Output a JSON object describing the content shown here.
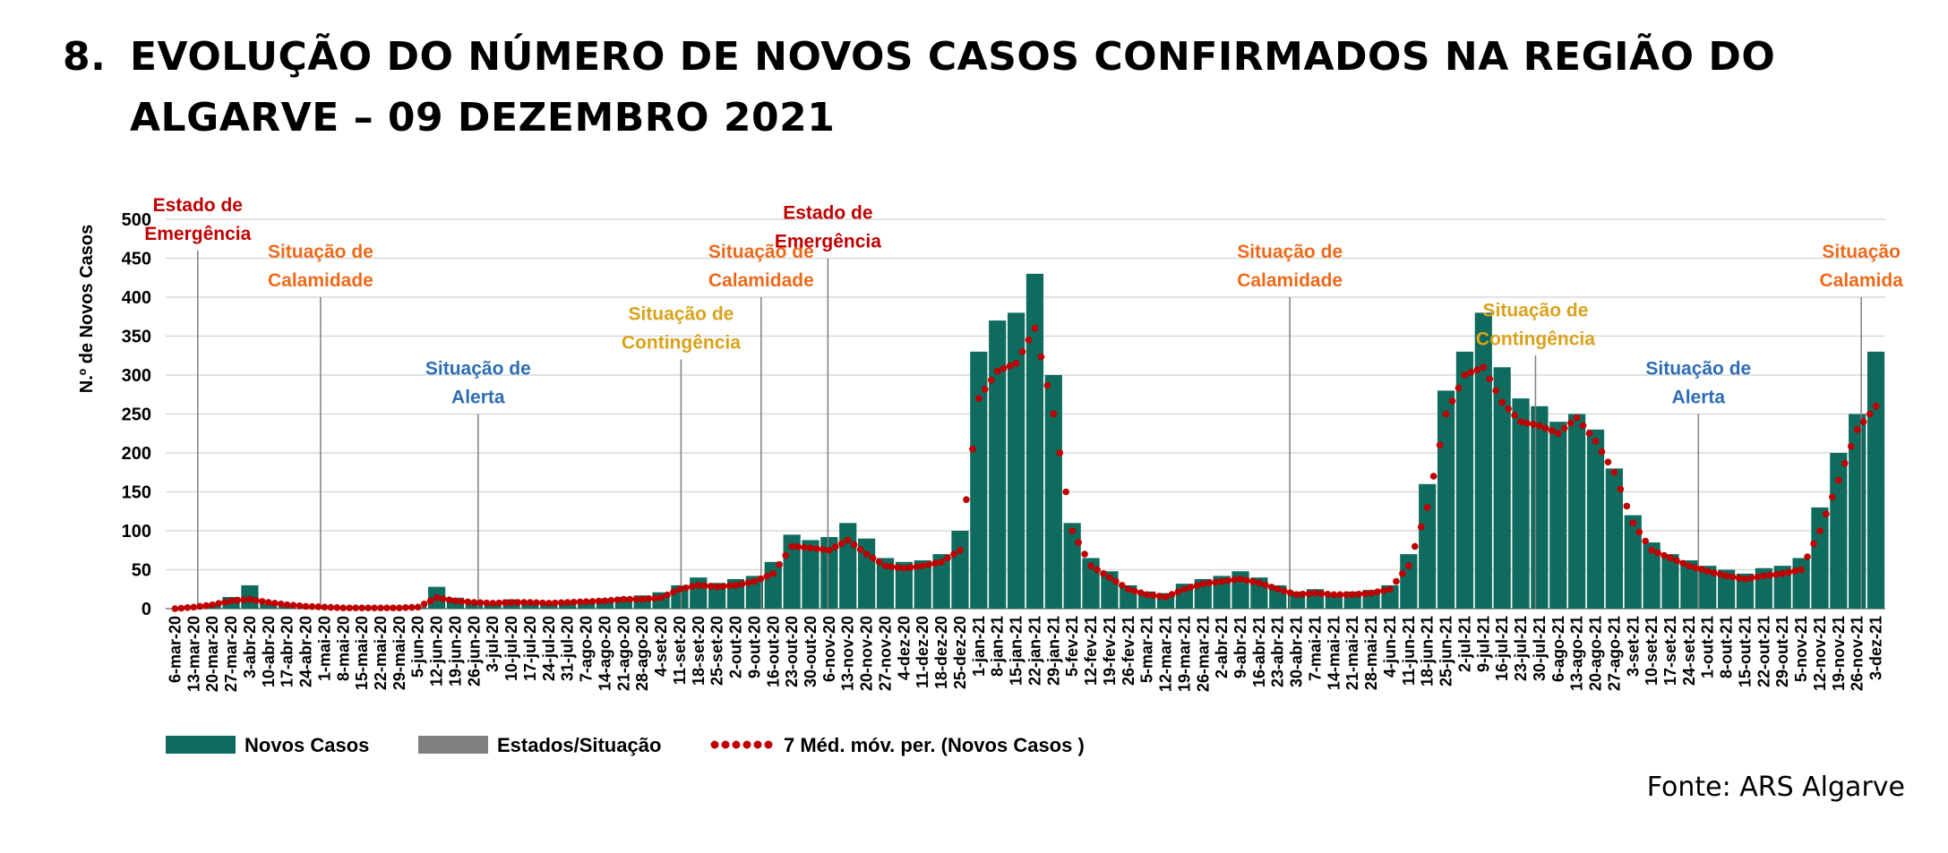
{
  "title": {
    "number": "8.",
    "line1": "EVOLUÇÃO DO NÚMERO DE NOVOS CASOS CONFIRMADOS NA REGIÃO DO",
    "line2": "ALGARVE – 09 DEZEMBRO 2021"
  },
  "source": "Fonte: ARS Algarve",
  "colors": {
    "bars": "#0e6b5e",
    "states": "#7f7f7f",
    "avg": "#c00000",
    "emergencia": "#c00000",
    "calamidade": "#ed6a1b",
    "contingencia": "#d9a21b",
    "alerta": "#2e6db4"
  },
  "chart_data": {
    "type": "bar",
    "title": "",
    "ylabel": "N.º de Novos Casos",
    "xlabel": "",
    "ylim": [
      0,
      500
    ],
    "yticks": [
      "0",
      "50",
      "100",
      "150",
      "200",
      "250",
      "300",
      "350",
      "400",
      "450",
      "500"
    ],
    "categories": [
      "6-mar-20",
      "13-mar-20",
      "20-mar-20",
      "27-mar-20",
      "3-abr-20",
      "10-abr-20",
      "17-abr-20",
      "24-abr-20",
      "1-mai-20",
      "8-mai-20",
      "15-mai-20",
      "22-mai-20",
      "29-mai-20",
      "5-jun-20",
      "12-jun-20",
      "19-jun-20",
      "26-jun-20",
      "3-jul-20",
      "10-jul-20",
      "17-jul-20",
      "24-jul-20",
      "31-jul-20",
      "7-ago-20",
      "14-ago-20",
      "21-ago-20",
      "28-ago-20",
      "4-set-20",
      "11-set-20",
      "18-set-20",
      "25-set-20",
      "2-out-20",
      "9-out-20",
      "16-out-20",
      "23-out-20",
      "30-out-20",
      "6-nov-20",
      "13-nov-20",
      "20-nov-20",
      "27-nov-20",
      "4-dez-20",
      "11-dez-20",
      "18-dez-20",
      "25-dez-20",
      "1-jan-21",
      "8-jan-21",
      "15-jan-21",
      "22-jan-21",
      "29-jan-21",
      "5-fev-21",
      "12-fev-21",
      "19-fev-21",
      "26-fev-21",
      "5-mar-21",
      "12-mar-21",
      "19-mar-21",
      "26-mar-21",
      "2-abr-21",
      "9-abr-21",
      "16-abr-21",
      "23-abr-21",
      "30-abr-21",
      "7-mai-21",
      "14-mai-21",
      "21-mai-21",
      "28-mai-21",
      "4-jun-21",
      "11-jun-21",
      "18-jun-21",
      "25-jun-21",
      "2-jul-21",
      "9-jul-21",
      "16-jul-21",
      "23-jul-21",
      "30-jul-21",
      "6-ago-21",
      "13-ago-21",
      "20-ago-21",
      "27-ago-21",
      "3-set-21",
      "10-set-21",
      "17-set-21",
      "24-set-21",
      "1-out-21",
      "8-out-21",
      "15-out-21",
      "22-out-21",
      "29-out-21",
      "5-nov-21",
      "12-nov-21",
      "19-nov-21",
      "26-nov-21",
      "3-dez-21"
    ],
    "series": [
      {
        "name": "7 Méd. móv. per. (Novos Casos )",
        "type": "dotted-line",
        "values": [
          0,
          2,
          5,
          10,
          12,
          8,
          5,
          3,
          2,
          1,
          1,
          1,
          1,
          2,
          14,
          10,
          8,
          7,
          8,
          8,
          7,
          8,
          9,
          10,
          12,
          12,
          14,
          25,
          30,
          28,
          30,
          35,
          45,
          80,
          78,
          75,
          88,
          70,
          55,
          52,
          55,
          60,
          75,
          270,
          305,
          315,
          360,
          250,
          100,
          55,
          40,
          25,
          18,
          15,
          25,
          32,
          35,
          38,
          33,
          25,
          18,
          20,
          18,
          18,
          20,
          25,
          55,
          130,
          250,
          300,
          310,
          265,
          240,
          235,
          225,
          245,
          215,
          175,
          110,
          75,
          65,
          55,
          48,
          42,
          38,
          42,
          45,
          50,
          100,
          165,
          230,
          260
        ]
      },
      {
        "name": "Novos Casos",
        "type": "bar",
        "values": [
          0,
          3,
          6,
          15,
          30,
          6,
          4,
          3,
          2,
          1,
          1,
          1,
          1,
          2,
          28,
          14,
          10,
          8,
          12,
          10,
          9,
          10,
          11,
          13,
          15,
          17,
          21,
          30,
          40,
          33,
          38,
          42,
          60,
          95,
          88,
          92,
          110,
          90,
          65,
          60,
          62,
          70,
          100,
          330,
          370,
          380,
          430,
          300,
          110,
          65,
          48,
          30,
          22,
          20,
          32,
          38,
          42,
          48,
          40,
          30,
          22,
          25,
          20,
          22,
          24,
          30,
          70,
          160,
          280,
          330,
          380,
          310,
          270,
          260,
          240,
          250,
          230,
          180,
          120,
          85,
          70,
          62,
          55,
          50,
          45,
          52,
          55,
          65,
          130,
          200,
          250,
          330
        ]
      },
      {
        "name": "Estados/Situação",
        "type": "vertical-lines"
      }
    ],
    "markers": [
      {
        "label_lines": [
          "Estado de",
          "Emergência"
        ],
        "date": "18-mar-20",
        "kind": "emergencia",
        "line_top": 460
      },
      {
        "label_lines": [
          "Situação de",
          "Calamidade"
        ],
        "date": "3-mai-20",
        "kind": "calamidade",
        "line_top": 400
      },
      {
        "label_lines": [
          "Situação de",
          "Alerta"
        ],
        "date": "1-jul-20",
        "kind": "alerta",
        "line_top": 250
      },
      {
        "label_lines": [
          "Situação de",
          "Contingência"
        ],
        "date": "15-set-20",
        "kind": "contingencia",
        "line_top": 320
      },
      {
        "label_lines": [
          "Situação de",
          "Calamidade"
        ],
        "date": "15-out-20",
        "kind": "calamidade",
        "line_top": 400
      },
      {
        "label_lines": [
          "Estado de",
          "Emergência"
        ],
        "date": "9-nov-20",
        "kind": "emergencia",
        "line_top": 450
      },
      {
        "label_lines": [
          "Situação de",
          "Calamidade"
        ],
        "date": "1-mai-21",
        "kind": "calamidade",
        "line_top": 400
      },
      {
        "label_lines": [
          "Situação de",
          "Contingência"
        ],
        "date": "1-ago-21",
        "kind": "contingencia",
        "line_top": 325
      },
      {
        "label_lines": [
          "Situação de",
          "Alerta"
        ],
        "date": "1-out-21",
        "kind": "alerta",
        "line_top": 250
      },
      {
        "label_lines": [
          "Situação",
          "Calamida"
        ],
        "date": "1-dez-21",
        "kind": "calamidade",
        "line_top": 400
      }
    ],
    "legend": [
      {
        "label": "Novos Casos",
        "kind": "bars"
      },
      {
        "label": "Estados/Situação",
        "kind": "states"
      },
      {
        "label": "7 Méd. móv. per. (Novos Casos )",
        "kind": "avg"
      }
    ],
    "legend_position": "bottom-left",
    "grid": true
  }
}
